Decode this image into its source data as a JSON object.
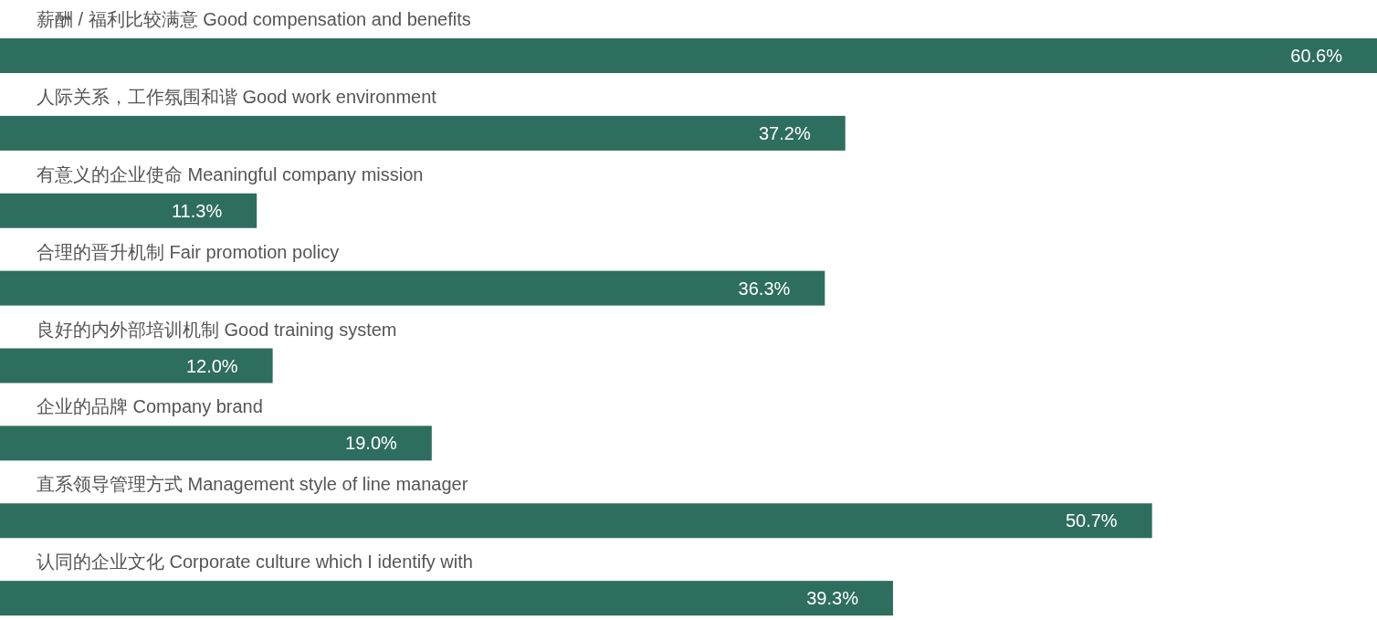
{
  "chart_data": {
    "type": "bar",
    "orientation": "horizontal",
    "color": "#2e6e5e",
    "categories": [
      "薪酬 / 福利比较满意 Good compensation and benefits",
      "人际关系，工作氛围和谐 Good work environment",
      "有意义的企业使命 Meaningful company mission",
      "合理的晋升机制 Fair promotion policy",
      "良好的内外部培训机制 Good training system",
      "企业的品牌 Company brand",
      "直系领导管理方式 Management style of line manager",
      "认同的企业文化 Corporate culture which I identify with"
    ],
    "values": [
      60.6,
      37.2,
      11.3,
      36.3,
      12.0,
      19.0,
      50.7,
      39.3
    ],
    "value_labels": [
      "60.6%",
      "37.2%",
      "11.3%",
      "36.3%",
      "12.0%",
      "19.0%",
      "50.7%",
      "39.3%"
    ]
  }
}
